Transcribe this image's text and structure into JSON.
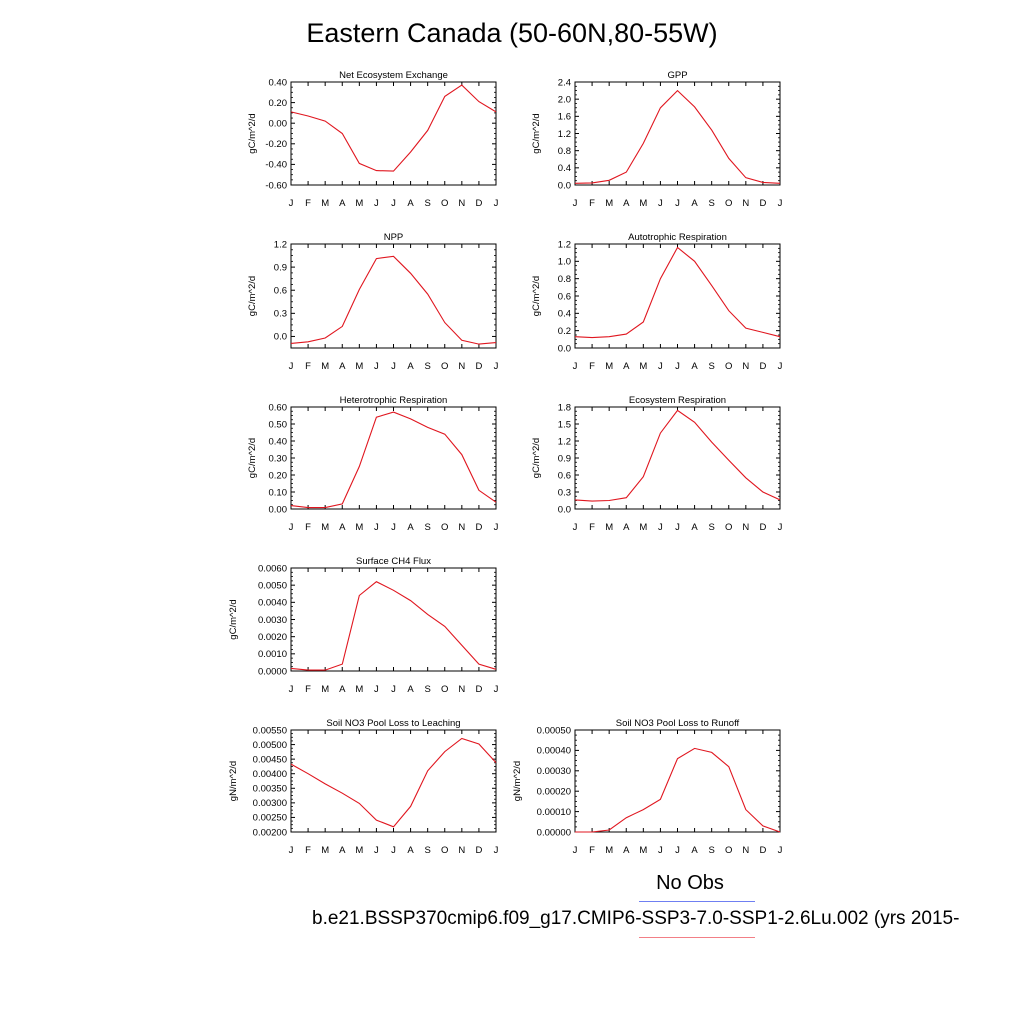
{
  "title": "Eastern Canada (50-60N,80-55W)",
  "legend": {
    "obs_label": "No Obs",
    "model_label": "b.e21.BSSP370cmip6.f09_g17.CMIP6-SSP3-7.0-SSP1-2.6Lu.002 (yrs 2015-",
    "obs_color": "#6f7ff2",
    "model_color": "#f27f86"
  },
  "line_color": "#e0161f",
  "chart_data": [
    {
      "type": "line",
      "title": "Net Ecosystem Exchange",
      "ylabel": "gC/m^2/d",
      "categories": [
        "J",
        "F",
        "M",
        "A",
        "M",
        "J",
        "J",
        "A",
        "S",
        "O",
        "N",
        "D",
        "J"
      ],
      "yticks": [
        "0.40",
        "0.20",
        "0.00",
        "-0.20",
        "-0.40",
        "-0.60"
      ],
      "ylim": [
        -0.6,
        0.4
      ],
      "values": [
        0.11,
        0.07,
        0.02,
        -0.1,
        -0.39,
        -0.46,
        -0.465,
        -0.28,
        -0.07,
        0.26,
        0.37,
        0.21,
        0.11
      ]
    },
    {
      "type": "line",
      "title": "GPP",
      "ylabel": "gC/m^2/d",
      "categories": [
        "J",
        "F",
        "M",
        "A",
        "M",
        "J",
        "J",
        "A",
        "S",
        "O",
        "N",
        "D",
        "J"
      ],
      "yticks": [
        "2.4",
        "2.0",
        "1.6",
        "1.2",
        "0.8",
        "0.4",
        "0.0"
      ],
      "ylim": [
        0,
        2.4
      ],
      "values": [
        0.04,
        0.05,
        0.11,
        0.3,
        0.97,
        1.8,
        2.2,
        1.82,
        1.28,
        0.62,
        0.17,
        0.06,
        0.04
      ]
    },
    {
      "type": "line",
      "title": "NPP",
      "ylabel": "gC/m^2/d",
      "categories": [
        "J",
        "F",
        "M",
        "A",
        "M",
        "J",
        "J",
        "A",
        "S",
        "O",
        "N",
        "D",
        "J"
      ],
      "yticks": [
        "1.2",
        "0.9",
        "0.6",
        "0.3",
        "0.0"
      ],
      "ylim": [
        -0.15,
        1.2
      ],
      "values": [
        -0.09,
        -0.07,
        -0.02,
        0.13,
        0.61,
        1.01,
        1.04,
        0.82,
        0.55,
        0.18,
        -0.05,
        -0.1,
        -0.08
      ]
    },
    {
      "type": "line",
      "title": "Autotrophic Respiration",
      "ylabel": "gC/m^2/d",
      "categories": [
        "J",
        "F",
        "M",
        "A",
        "M",
        "J",
        "J",
        "A",
        "S",
        "O",
        "N",
        "D",
        "J"
      ],
      "yticks": [
        "1.2",
        "1.0",
        "0.8",
        "0.6",
        "0.4",
        "0.2",
        "0.0"
      ],
      "ylim": [
        0,
        1.2
      ],
      "values": [
        0.13,
        0.12,
        0.13,
        0.16,
        0.3,
        0.8,
        1.16,
        1.0,
        0.72,
        0.43,
        0.23,
        0.18,
        0.13
      ]
    },
    {
      "type": "line",
      "title": "Heterotrophic Respiration",
      "ylabel": "gC/m^2/d",
      "categories": [
        "J",
        "F",
        "M",
        "A",
        "M",
        "J",
        "J",
        "A",
        "S",
        "O",
        "N",
        "D",
        "J"
      ],
      "yticks": [
        "0.60",
        "0.50",
        "0.40",
        "0.30",
        "0.20",
        "0.10",
        "0.00"
      ],
      "ylim": [
        0,
        0.6
      ],
      "values": [
        0.02,
        0.008,
        0.008,
        0.03,
        0.25,
        0.54,
        0.57,
        0.53,
        0.48,
        0.44,
        0.32,
        0.11,
        0.04
      ]
    },
    {
      "type": "line",
      "title": "Ecosystem Respiration",
      "ylabel": "gC/m^2/d",
      "categories": [
        "J",
        "F",
        "M",
        "A",
        "M",
        "J",
        "J",
        "A",
        "S",
        "O",
        "N",
        "D",
        "J"
      ],
      "yticks": [
        "1.8",
        "1.5",
        "1.2",
        "0.9",
        "0.6",
        "0.3",
        "0.0"
      ],
      "ylim": [
        0,
        1.8
      ],
      "values": [
        0.16,
        0.14,
        0.15,
        0.2,
        0.57,
        1.34,
        1.74,
        1.53,
        1.18,
        0.86,
        0.55,
        0.3,
        0.16
      ]
    },
    {
      "type": "line",
      "title": "Surface CH4 Flux",
      "ylabel": "gC/m^2/d",
      "categories": [
        "J",
        "F",
        "M",
        "A",
        "M",
        "J",
        "J",
        "A",
        "S",
        "O",
        "N",
        "D",
        "J"
      ],
      "yticks": [
        "0.0060",
        "0.0050",
        "0.0040",
        "0.0030",
        "0.0020",
        "0.0010",
        "0.0000"
      ],
      "ylim": [
        0,
        0.006
      ],
      "values": [
        0.00015,
        5e-05,
        5e-05,
        0.0004,
        0.0044,
        0.0052,
        0.0047,
        0.0041,
        0.0033,
        0.0026,
        0.0015,
        0.0004,
        0.0001
      ]
    },
    {
      "type": "line",
      "title": "Soil NO3 Pool Loss to Leaching",
      "ylabel": "gN/m^2/d",
      "categories": [
        "J",
        "F",
        "M",
        "A",
        "M",
        "J",
        "J",
        "A",
        "S",
        "O",
        "N",
        "D",
        "J"
      ],
      "yticks": [
        "0.00550",
        "0.00500",
        "0.00450",
        "0.00400",
        "0.00350",
        "0.00300",
        "0.00250",
        "0.00200"
      ],
      "ylim": [
        0.002,
        0.0055
      ],
      "values": [
        0.00433,
        0.004,
        0.00365,
        0.00333,
        0.00298,
        0.00241,
        0.00218,
        0.00288,
        0.0041,
        0.00476,
        0.00521,
        0.00502,
        0.00438
      ]
    },
    {
      "type": "line",
      "title": "Soil NO3 Pool Loss to Runoff",
      "ylabel": "gN/m^2/d",
      "categories": [
        "J",
        "F",
        "M",
        "A",
        "M",
        "J",
        "J",
        "A",
        "S",
        "O",
        "N",
        "D",
        "J"
      ],
      "yticks": [
        "0.00050",
        "0.00040",
        "0.00030",
        "0.00020",
        "0.00010",
        "0.00000"
      ],
      "ylim": [
        0,
        0.0005
      ],
      "values": [
        0.0,
        0.0,
        1e-05,
        7e-05,
        0.00011,
        0.00016,
        0.00036,
        0.00041,
        0.00039,
        0.00032,
        0.00011,
        3e-05,
        0.0
      ]
    }
  ]
}
